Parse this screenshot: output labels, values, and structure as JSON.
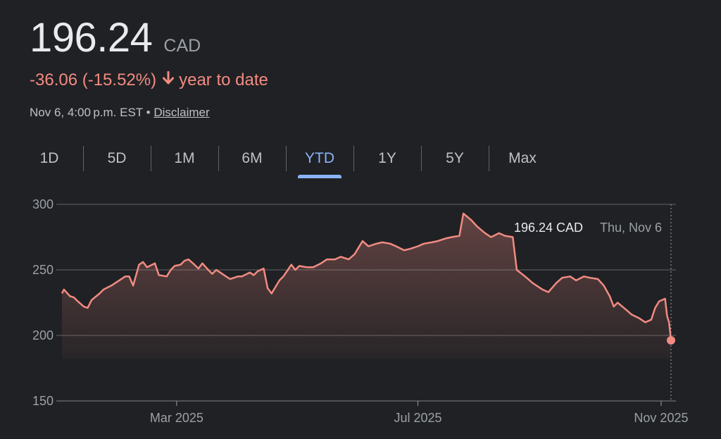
{
  "quote": {
    "price": "196.24",
    "currency": "CAD",
    "change": "-36.06 (-15.52%)",
    "period_label": "year to date",
    "timestamp": "Nov 6, 4:00 p.m. EST",
    "separator": "•",
    "disclaimer": "Disclaimer",
    "down_color": "#f28b82",
    "arrow_icon": "arrow-down-icon"
  },
  "tabs": [
    {
      "label": "1D"
    },
    {
      "label": "5D"
    },
    {
      "label": "1M"
    },
    {
      "label": "6M"
    },
    {
      "label": "YTD",
      "active": true
    },
    {
      "label": "1Y"
    },
    {
      "label": "5Y"
    },
    {
      "label": "Max"
    }
  ],
  "chart_data": {
    "type": "area",
    "ylim": [
      150,
      300
    ],
    "yticks": [
      150,
      200,
      250,
      300
    ],
    "xlim": [
      "2025-01-02",
      "2025-11-06"
    ],
    "xticks": [
      {
        "label": "Mar 2025",
        "date": "2025-03-01"
      },
      {
        "label": "Jul 2025",
        "date": "2025-07-01"
      },
      {
        "label": "Nov 2025",
        "date": "2025-11-01"
      }
    ],
    "grid": true,
    "line_color": "#f28b82",
    "tooltip": {
      "value": "196.24 CAD",
      "date": "Thu, Nov 6"
    },
    "series": [
      {
        "points": [
          [
            "2025-01-02",
            232
          ],
          [
            "2025-01-03",
            235
          ],
          [
            "2025-01-06",
            230
          ],
          [
            "2025-01-08",
            229
          ],
          [
            "2025-01-10",
            226
          ],
          [
            "2025-01-13",
            222
          ],
          [
            "2025-01-15",
            221
          ],
          [
            "2025-01-17",
            227
          ],
          [
            "2025-01-21",
            232
          ],
          [
            "2025-01-23",
            235
          ],
          [
            "2025-01-27",
            238
          ],
          [
            "2025-01-29",
            240
          ],
          [
            "2025-01-31",
            242
          ],
          [
            "2025-02-03",
            245
          ],
          [
            "2025-02-05",
            245
          ],
          [
            "2025-02-07",
            238
          ],
          [
            "2025-02-10",
            254
          ],
          [
            "2025-02-12",
            256
          ],
          [
            "2025-02-14",
            252
          ],
          [
            "2025-02-18",
            255
          ],
          [
            "2025-02-20",
            246
          ],
          [
            "2025-02-24",
            245
          ],
          [
            "2025-02-26",
            250
          ],
          [
            "2025-02-28",
            253
          ],
          [
            "2025-03-03",
            254
          ],
          [
            "2025-03-05",
            257
          ],
          [
            "2025-03-07",
            258
          ],
          [
            "2025-03-10",
            254
          ],
          [
            "2025-03-12",
            251
          ],
          [
            "2025-03-14",
            255
          ],
          [
            "2025-03-17",
            250
          ],
          [
            "2025-03-19",
            247
          ],
          [
            "2025-03-21",
            250
          ],
          [
            "2025-03-24",
            247
          ],
          [
            "2025-03-26",
            245
          ],
          [
            "2025-03-28",
            243
          ],
          [
            "2025-04-01",
            245
          ],
          [
            "2025-04-03",
            245
          ],
          [
            "2025-04-07",
            248
          ],
          [
            "2025-04-09",
            246
          ],
          [
            "2025-04-11",
            249
          ],
          [
            "2025-04-14",
            251
          ],
          [
            "2025-04-16",
            236
          ],
          [
            "2025-04-18",
            232
          ],
          [
            "2025-04-22",
            242
          ],
          [
            "2025-04-24",
            245
          ],
          [
            "2025-04-28",
            254
          ],
          [
            "2025-04-30",
            250
          ],
          [
            "2025-05-02",
            253
          ],
          [
            "2025-05-06",
            252
          ],
          [
            "2025-05-09",
            252
          ],
          [
            "2025-05-13",
            255
          ],
          [
            "2025-05-16",
            258
          ],
          [
            "2025-05-20",
            258
          ],
          [
            "2025-05-23",
            260
          ],
          [
            "2025-05-27",
            258
          ],
          [
            "2025-05-30",
            262
          ],
          [
            "2025-06-03",
            272
          ],
          [
            "2025-06-06",
            268
          ],
          [
            "2025-06-10",
            270
          ],
          [
            "2025-06-13",
            271
          ],
          [
            "2025-06-17",
            270
          ],
          [
            "2025-06-20",
            268
          ],
          [
            "2025-06-24",
            265
          ],
          [
            "2025-06-27",
            266
          ],
          [
            "2025-07-01",
            268
          ],
          [
            "2025-07-04",
            270
          ],
          [
            "2025-07-08",
            271
          ],
          [
            "2025-07-11",
            272
          ],
          [
            "2025-07-15",
            274
          ],
          [
            "2025-07-18",
            275
          ],
          [
            "2025-07-22",
            276
          ],
          [
            "2025-07-24",
            293
          ],
          [
            "2025-07-28",
            288
          ],
          [
            "2025-07-31",
            283
          ],
          [
            "2025-08-04",
            278
          ],
          [
            "2025-08-07",
            275
          ],
          [
            "2025-08-11",
            278
          ],
          [
            "2025-08-14",
            276
          ],
          [
            "2025-08-18",
            275
          ],
          [
            "2025-08-20",
            250
          ],
          [
            "2025-08-25",
            244
          ],
          [
            "2025-08-28",
            240
          ],
          [
            "2025-09-02",
            235
          ],
          [
            "2025-09-05",
            233
          ],
          [
            "2025-09-09",
            240
          ],
          [
            "2025-09-12",
            244
          ],
          [
            "2025-09-16",
            245
          ],
          [
            "2025-09-19",
            242
          ],
          [
            "2025-09-23",
            245
          ],
          [
            "2025-09-26",
            244
          ],
          [
            "2025-09-30",
            243
          ],
          [
            "2025-10-03",
            238
          ],
          [
            "2025-10-06",
            230
          ],
          [
            "2025-10-08",
            222
          ],
          [
            "2025-10-10",
            225
          ],
          [
            "2025-10-14",
            220
          ],
          [
            "2025-10-17",
            216
          ],
          [
            "2025-10-21",
            213
          ],
          [
            "2025-10-24",
            210
          ],
          [
            "2025-10-27",
            212
          ],
          [
            "2025-10-29",
            221
          ],
          [
            "2025-10-31",
            226
          ],
          [
            "2025-11-03",
            228
          ],
          [
            "2025-11-04",
            215
          ],
          [
            "2025-11-05",
            210
          ],
          [
            "2025-11-06",
            196.24
          ]
        ]
      }
    ]
  }
}
